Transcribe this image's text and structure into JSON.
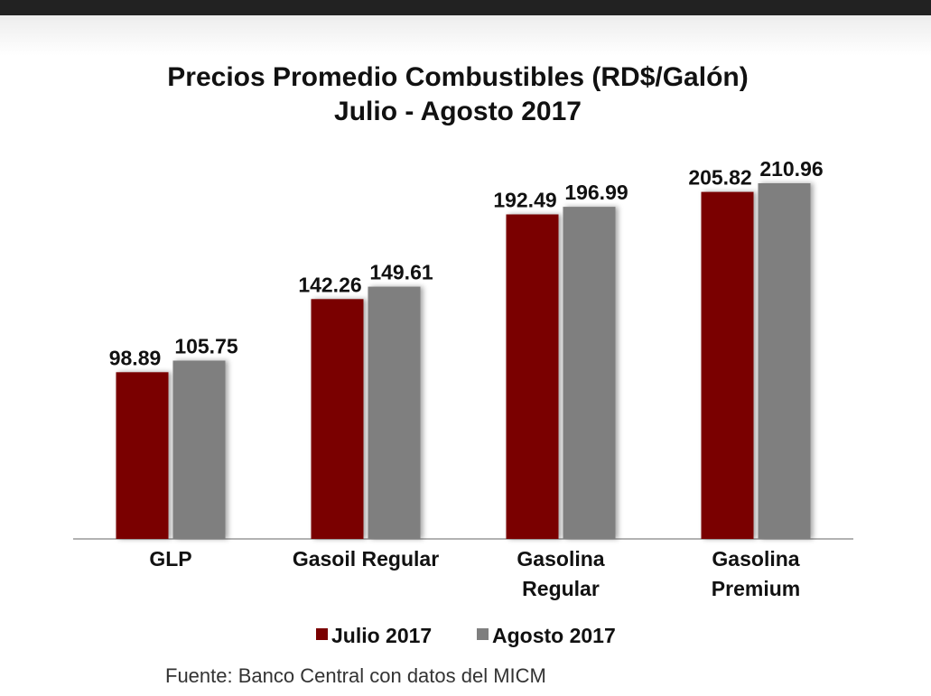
{
  "chart_data": {
    "type": "bar",
    "title": "Precios Promedio Combustibles (RD$/Galón)",
    "subtitle": "Julio - Agosto 2017",
    "categories": [
      [
        "GLP"
      ],
      [
        "Gasoil Regular"
      ],
      [
        "Gasolina",
        "Regular"
      ],
      [
        "Gasolina",
        "Premium"
      ]
    ],
    "series": [
      {
        "name": "Julio 2017",
        "color": "#7a0000",
        "values": [
          98.89,
          142.26,
          192.49,
          205.82
        ]
      },
      {
        "name": "Agosto 2017",
        "color": "#7f7f7f",
        "values": [
          105.75,
          149.61,
          196.99,
          210.96
        ]
      }
    ],
    "source": "Fuente: Banco Central con datos del MICM"
  }
}
